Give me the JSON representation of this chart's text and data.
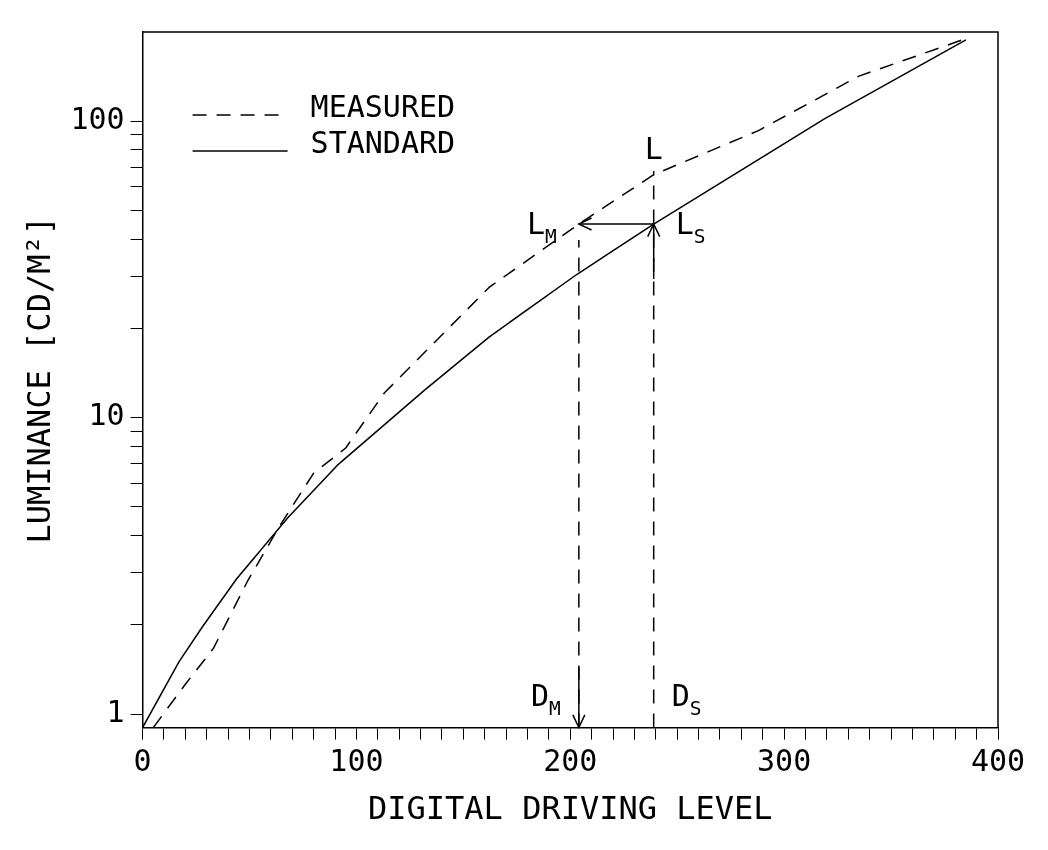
{
  "chart_data": {
    "type": "line",
    "xlabel": "DIGITAL DRIVING LEVEL",
    "ylabel": "LUMINANCE [CD/M²]",
    "log": "y",
    "grid": false,
    "legend": "top left",
    "marker": "none",
    "xlim": [
      0,
      400
    ],
    "ylim": [
      0.9,
      200
    ],
    "xticks": [
      0,
      {
        "value": 10,
        "label": null
      },
      {
        "value": 20,
        "label": null
      },
      {
        "value": 30,
        "label": null
      },
      {
        "value": 40,
        "label": null
      },
      {
        "value": 50,
        "label": null
      },
      {
        "value": 60,
        "label": null
      },
      {
        "value": 70,
        "label": null
      },
      {
        "value": 80,
        "label": null
      },
      {
        "value": 90,
        "label": null
      },
      100,
      {
        "value": 110,
        "label": null
      },
      {
        "value": 120,
        "label": null
      },
      {
        "value": 130,
        "label": null
      },
      {
        "value": 140,
        "label": null
      },
      {
        "value": 150,
        "label": null
      },
      {
        "value": 160,
        "label": null
      },
      {
        "value": 170,
        "label": null
      },
      {
        "value": 180,
        "label": null
      },
      {
        "value": 190,
        "label": null
      },
      200,
      {
        "value": 210,
        "label": null
      },
      {
        "value": 220,
        "label": null
      },
      {
        "value": 230,
        "label": null
      },
      {
        "value": 240,
        "label": null
      },
      {
        "value": 250,
        "label": null
      },
      {
        "value": 260,
        "label": null
      },
      {
        "value": 270,
        "label": null
      },
      {
        "value": 280,
        "label": null
      },
      {
        "value": 290,
        "label": null
      },
      300,
      {
        "value": 310,
        "label": null
      },
      {
        "value": 320,
        "label": null
      },
      {
        "value": 330,
        "label": null
      },
      {
        "value": 340,
        "label": null
      },
      {
        "value": 350,
        "label": null
      },
      {
        "value": 360,
        "label": null
      },
      {
        "value": 370,
        "label": null
      },
      {
        "value": 380,
        "label": null
      },
      {
        "value": 390,
        "label": null
      },
      400
    ],
    "yticks": [
      1,
      {
        "value": 2,
        "label": null
      },
      {
        "value": 3,
        "label": null
      },
      {
        "value": 4,
        "label": null
      },
      {
        "value": 5,
        "label": null
      },
      {
        "value": 6,
        "label": null
      },
      {
        "value": 7,
        "label": null
      },
      {
        "value": 8,
        "label": null
      },
      {
        "value": 9,
        "label": null
      },
      10,
      {
        "value": 20,
        "label": null
      },
      {
        "value": 30,
        "label": null
      },
      {
        "value": 40,
        "label": null
      },
      {
        "value": 50,
        "label": null
      },
      {
        "value": 60,
        "label": null
      },
      {
        "value": 70,
        "label": null
      },
      {
        "value": 80,
        "label": null
      },
      {
        "value": 90,
        "label": null
      },
      100
    ],
    "series": [
      {
        "name": "MEASURED",
        "color": "#000000",
        "line_style": "dashed",
        "x": [
          5,
          20,
          33,
          49,
          64,
          80,
          95,
          113,
          162,
          204,
          239,
          288,
          335,
          385
        ],
        "values": [
          0.9,
          1.26,
          1.66,
          2.8,
          4.3,
          6.5,
          7.9,
          12.1,
          27.5,
          45,
          66,
          93,
          142,
          190
        ]
      },
      {
        "name": "STANDARD",
        "color": "#000000",
        "line_style": "solid",
        "x": [
          0,
          17,
          28,
          44,
          68,
          91,
          132,
          162,
          203,
          239,
          319,
          385
        ],
        "values": [
          0.9,
          1.5,
          1.97,
          2.86,
          4.6,
          6.9,
          12.4,
          18.7,
          30.4,
          45,
          102,
          188
        ]
      }
    ],
    "ref_lines": [
      {
        "axis": "x",
        "value": 204,
        "label": "D$_{M}$",
        "line_style": "dashed",
        "color": "#000000"
      },
      {
        "axis": "x",
        "value": 239,
        "label": "D$_{S}$",
        "line_style": "dashed",
        "color": "#000000"
      }
    ],
    "annotations": [
      {
        "text": "L$_{M}$",
        "x": 204,
        "y": 45
      },
      {
        "text": "L$_{S}$",
        "x": 239,
        "y": 45
      },
      "L"
    ]
  }
}
